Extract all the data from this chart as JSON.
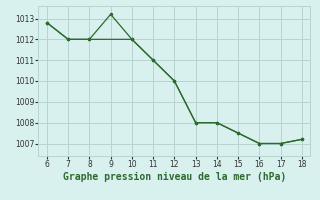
{
  "line1_x": [
    6,
    7,
    8,
    10,
    11,
    12,
    13,
    14,
    15,
    16,
    17,
    18
  ],
  "line1_y": [
    1012.8,
    1012.0,
    1012.0,
    1012.0,
    1011.0,
    1010.0,
    1008.0,
    1008.0,
    1007.5,
    1007.0,
    1007.0,
    1007.2
  ],
  "line2_x": [
    6,
    7,
    8,
    9,
    10,
    11,
    12,
    13,
    14,
    15,
    16,
    17,
    18
  ],
  "line2_y": [
    1012.8,
    1012.0,
    1012.0,
    1013.2,
    1012.0,
    1011.0,
    1010.0,
    1008.0,
    1008.0,
    1007.5,
    1007.0,
    1007.0,
    1007.2
  ],
  "line_color": "#2d6a2d",
  "marker": "o",
  "marker_size": 2.5,
  "xlim": [
    5.6,
    18.4
  ],
  "ylim": [
    1006.4,
    1013.6
  ],
  "xticks": [
    6,
    7,
    8,
    9,
    10,
    11,
    12,
    13,
    14,
    15,
    16,
    17,
    18
  ],
  "yticks": [
    1007,
    1008,
    1009,
    1010,
    1011,
    1012,
    1013
  ],
  "xlabel": "Graphe pression niveau de la mer (hPa)",
  "bg_color": "#d8f0ee",
  "grid_color": "#b8d4d0",
  "tick_fontsize": 5.5,
  "xlabel_fontsize": 7.0
}
